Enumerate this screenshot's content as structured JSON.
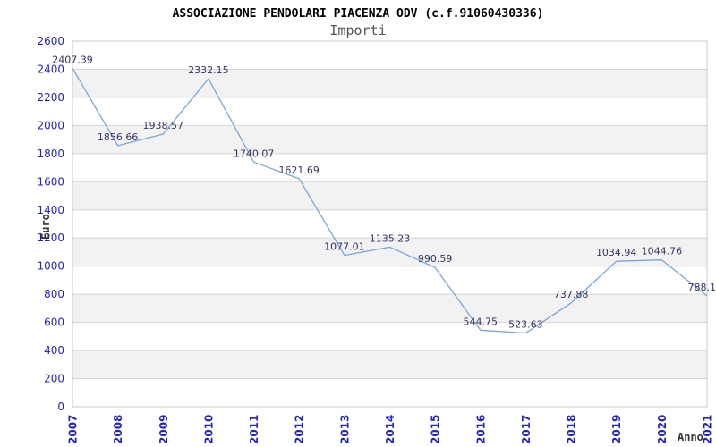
{
  "chart_data": {
    "type": "line",
    "title": "ASSOCIAZIONE PENDOLARI PIACENZA ODV (c.f.91060430336)",
    "subtitle": "Importi",
    "xlabel": "Anno",
    "ylabel": "Euro",
    "categories": [
      "2007",
      "2008",
      "2009",
      "2010",
      "2011",
      "2012",
      "2013",
      "2014",
      "2015",
      "2016",
      "2017",
      "2018",
      "2019",
      "2020",
      "2021"
    ],
    "series": [
      {
        "name": "Importi",
        "values": [
          2407.39,
          1856.66,
          1938.57,
          2332.15,
          1740.07,
          1621.69,
          1077.01,
          1135.23,
          990.59,
          544.75,
          523.63,
          737.88,
          1034.94,
          1044.76,
          788.1
        ]
      }
    ],
    "point_labels": [
      "2407.39",
      "1856.66",
      "1938.57",
      "2332.15",
      "1740.07",
      "1621.69",
      "1077.01",
      "1135.23",
      "990.59",
      "544.75",
      "523.63",
      "737.88",
      "1034.94",
      "1044.76",
      "788.1"
    ],
    "ylim": [
      0,
      2600
    ],
    "ytick_step": 200,
    "grid": "horizontal",
    "legend": "none",
    "plot_bands_alternating": true
  },
  "colors": {
    "background": "#ffffff",
    "line": "#79a6d9",
    "tick_label": "#2222cc",
    "point_label": "#333366",
    "band": "#f2f2f2",
    "grid": "#d6d6d6",
    "border": "#c9c9c9",
    "title": "#000000",
    "subtitle": "#555555",
    "axis_title": "#333333"
  }
}
